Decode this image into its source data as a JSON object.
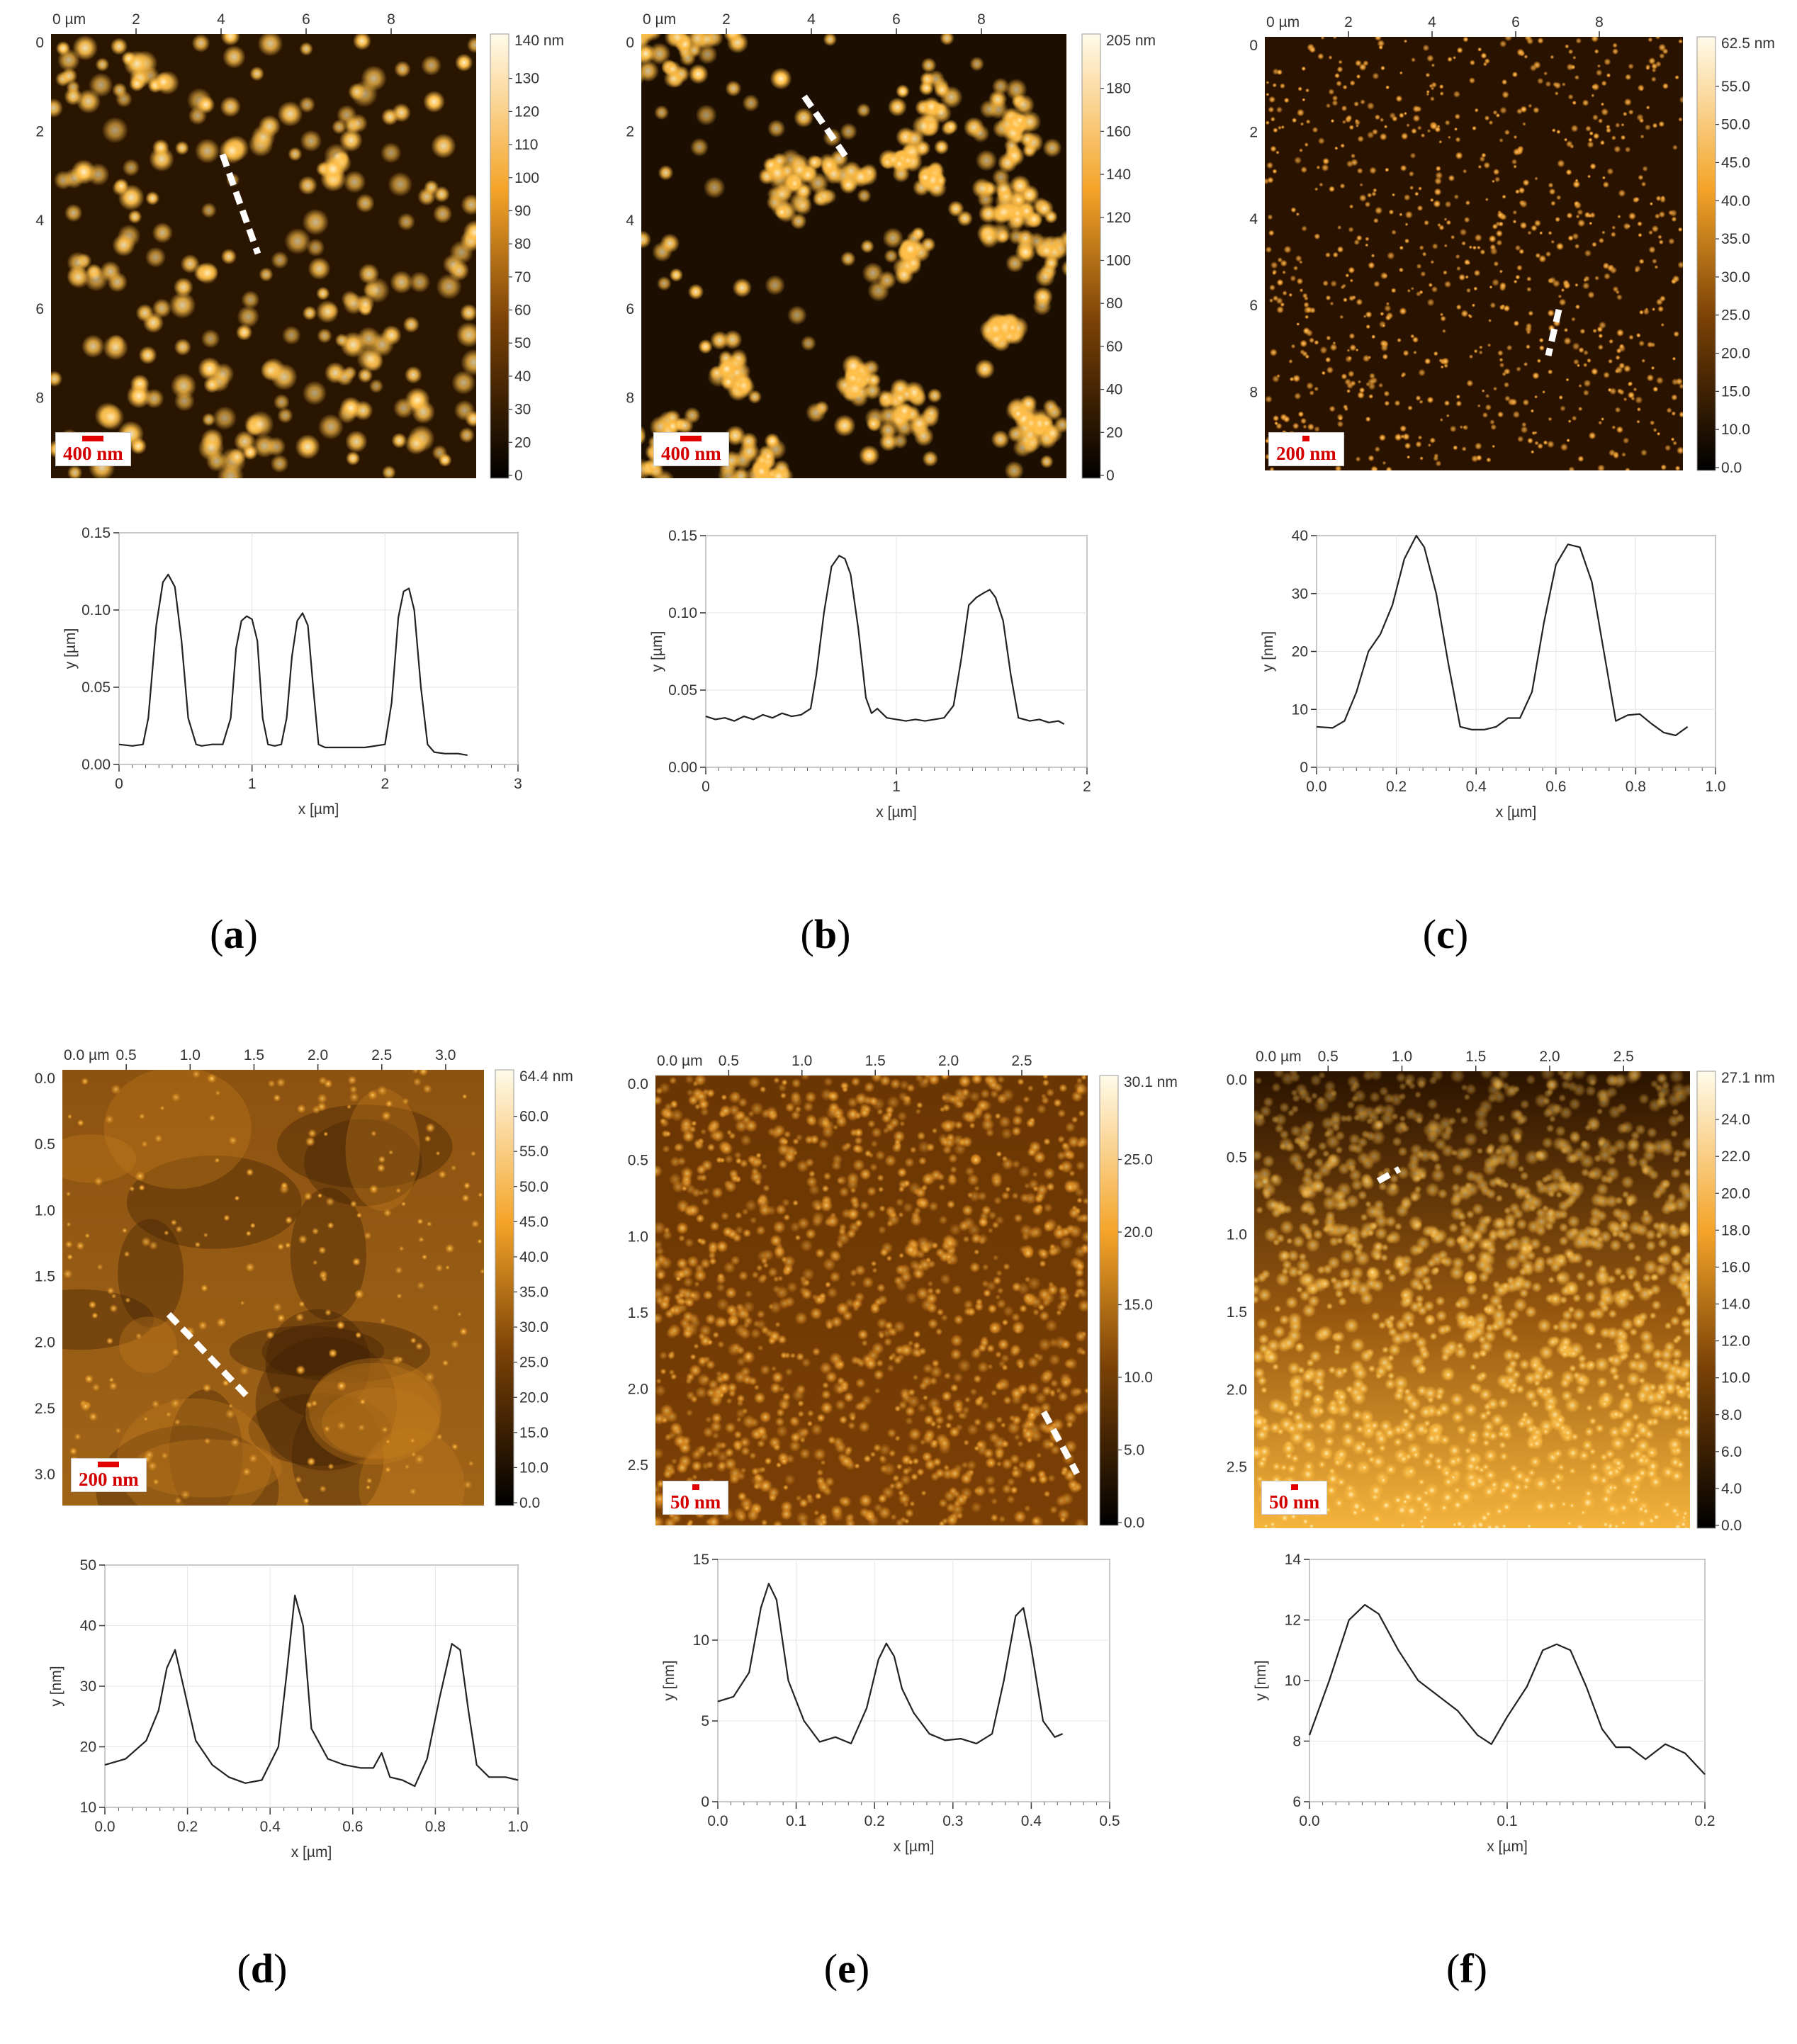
{
  "panels": [
    {
      "id": "a",
      "label": "a",
      "afm": {
        "x_axis_title": "0 µm",
        "x_ticks": [
          "2",
          "4",
          "6",
          "8"
        ],
        "y_ticks": [
          "0",
          "2",
          "4",
          "6",
          "8"
        ],
        "colorbar_max_label": "140 nm",
        "colorbar_ticks": [
          "130",
          "120",
          "110",
          "100",
          "90",
          "80",
          "70",
          "60",
          "50",
          "40",
          "30",
          "20",
          "0"
        ],
        "scale_bar_label": "400 nm",
        "colors": {
          "dark": "#2a1500",
          "mid": "#8a4f08",
          "bright": "#ffc04a",
          "highlight": "#fff1c8"
        }
      },
      "chart_data": {
        "type": "line",
        "xlabel": "x [µm]",
        "ylabel": "y [µm]",
        "xlim": [
          0,
          3
        ],
        "ylim": [
          0,
          0.15
        ],
        "x_ticks": [
          "0",
          "1",
          "2",
          "3"
        ],
        "y_ticks": [
          "0.00",
          "0.05",
          "0.10",
          "0.15"
        ],
        "x": [
          0,
          0.1,
          0.18,
          0.22,
          0.28,
          0.33,
          0.37,
          0.42,
          0.47,
          0.52,
          0.58,
          0.62,
          0.7,
          0.78,
          0.84,
          0.88,
          0.92,
          0.96,
          1.0,
          1.04,
          1.08,
          1.12,
          1.17,
          1.22,
          1.26,
          1.3,
          1.34,
          1.38,
          1.42,
          1.46,
          1.5,
          1.55,
          1.6,
          1.7,
          1.85,
          2.0,
          2.05,
          2.1,
          2.14,
          2.18,
          2.22,
          2.27,
          2.32,
          2.37,
          2.45,
          2.55,
          2.62
        ],
        "series": [
          {
            "values": [
              0.013,
              0.012,
              0.013,
              0.03,
              0.09,
              0.118,
              0.123,
              0.115,
              0.08,
              0.03,
              0.013,
              0.012,
              0.013,
              0.013,
              0.03,
              0.075,
              0.093,
              0.096,
              0.094,
              0.08,
              0.03,
              0.013,
              0.012,
              0.013,
              0.03,
              0.07,
              0.093,
              0.098,
              0.09,
              0.05,
              0.013,
              0.011,
              0.011,
              0.011,
              0.011,
              0.013,
              0.04,
              0.095,
              0.112,
              0.114,
              0.1,
              0.05,
              0.013,
              0.008,
              0.007,
              0.007,
              0.006
            ]
          }
        ]
      }
    },
    {
      "id": "b",
      "label": "b",
      "afm": {
        "x_axis_title": "0 µm",
        "x_ticks": [
          "2",
          "4",
          "6",
          "8"
        ],
        "y_ticks": [
          "0",
          "2",
          "4",
          "6",
          "8"
        ],
        "colorbar_max_label": "205 nm",
        "colorbar_ticks": [
          "180",
          "160",
          "140",
          "120",
          "100",
          "80",
          "60",
          "40",
          "20",
          "0"
        ],
        "scale_bar_label": "400 nm",
        "colors": {
          "dark": "#1c0e00",
          "mid": "#7a4406",
          "bright": "#ffbd45",
          "highlight": "#fff1c8"
        }
      },
      "chart_data": {
        "type": "line",
        "xlabel": "x [µm]",
        "ylabel": "y [µm]",
        "xlim": [
          0,
          2
        ],
        "ylim": [
          0,
          0.15
        ],
        "x_ticks": [
          "0",
          "1",
          "2"
        ],
        "y_ticks": [
          "0.00",
          "0.05",
          "0.10",
          "0.15"
        ],
        "x": [
          0,
          0.05,
          0.1,
          0.15,
          0.2,
          0.25,
          0.3,
          0.35,
          0.4,
          0.45,
          0.5,
          0.55,
          0.58,
          0.62,
          0.66,
          0.7,
          0.73,
          0.76,
          0.8,
          0.84,
          0.87,
          0.9,
          0.95,
          1.0,
          1.05,
          1.1,
          1.15,
          1.2,
          1.25,
          1.3,
          1.34,
          1.38,
          1.42,
          1.46,
          1.49,
          1.52,
          1.56,
          1.6,
          1.64,
          1.7,
          1.75,
          1.8,
          1.85,
          1.88
        ],
        "series": [
          {
            "values": [
              0.033,
              0.031,
              0.032,
              0.03,
              0.033,
              0.031,
              0.034,
              0.032,
              0.035,
              0.033,
              0.034,
              0.038,
              0.06,
              0.1,
              0.13,
              0.137,
              0.135,
              0.125,
              0.09,
              0.045,
              0.035,
              0.038,
              0.032,
              0.031,
              0.03,
              0.031,
              0.03,
              0.031,
              0.032,
              0.04,
              0.07,
              0.105,
              0.11,
              0.113,
              0.115,
              0.11,
              0.095,
              0.06,
              0.032,
              0.03,
              0.031,
              0.029,
              0.03,
              0.028
            ]
          }
        ]
      }
    },
    {
      "id": "c",
      "label": "c",
      "afm": {
        "x_axis_title": "0 µm",
        "x_ticks": [
          "2",
          "4",
          "6",
          "8"
        ],
        "y_ticks": [
          "0",
          "2",
          "4",
          "6",
          "8"
        ],
        "colorbar_max_label": "62.5 nm",
        "colorbar_ticks": [
          "55.0",
          "50.0",
          "45.0",
          "40.0",
          "35.0",
          "30.0",
          "25.0",
          "20.0",
          "15.0",
          "10.0",
          "0.0"
        ],
        "scale_bar_label": "200 nm",
        "colors": {
          "dark": "#2a1200",
          "mid": "#6b3403",
          "bright": "#e8962a",
          "highlight": "#ffd98a"
        }
      },
      "chart_data": {
        "type": "line",
        "xlabel": "x [µm]",
        "ylabel": "y [nm]",
        "xlim": [
          0,
          1.0
        ],
        "ylim": [
          0,
          40
        ],
        "x_ticks": [
          "0.0",
          "0.2",
          "0.4",
          "0.6",
          "0.8",
          "1.0"
        ],
        "y_ticks": [
          "0",
          "10",
          "20",
          "30",
          "40"
        ],
        "x": [
          0,
          0.04,
          0.07,
          0.1,
          0.13,
          0.16,
          0.19,
          0.22,
          0.25,
          0.27,
          0.3,
          0.33,
          0.36,
          0.39,
          0.42,
          0.45,
          0.48,
          0.51,
          0.54,
          0.57,
          0.6,
          0.63,
          0.66,
          0.69,
          0.72,
          0.75,
          0.78,
          0.81,
          0.84,
          0.87,
          0.9,
          0.93
        ],
        "series": [
          {
            "values": [
              7,
              6.8,
              8,
              13,
              20,
              23,
              28,
              36,
              40,
              38,
              30,
              18,
              7,
              6.5,
              6.5,
              7,
              8.5,
              8.5,
              13,
              25,
              35,
              38.5,
              38,
              32,
              20,
              8,
              9,
              9.2,
              7.5,
              6,
              5.5,
              7
            ]
          }
        ]
      }
    },
    {
      "id": "d",
      "label": "d",
      "afm": {
        "x_axis_title": "0.0 µm",
        "x_ticks": [
          "0.5",
          "1.0",
          "1.5",
          "2.0",
          "2.5",
          "3.0"
        ],
        "y_ticks": [
          "0.0",
          "0.5",
          "1.0",
          "1.5",
          "2.0",
          "2.5",
          "3.0"
        ],
        "colorbar_max_label": "64.4 nm",
        "colorbar_ticks": [
          "60.0",
          "55.0",
          "50.0",
          "45.0",
          "40.0",
          "35.0",
          "30.0",
          "25.0",
          "20.0",
          "15.0",
          "10.0",
          "0.0"
        ],
        "scale_bar_label": "200 nm",
        "colors": {
          "dark": "#3a1c02",
          "mid": "#8c5210",
          "bright": "#d88d22",
          "highlight": "#ffd270"
        }
      },
      "chart_data": {
        "type": "line",
        "xlabel": "x [µm]",
        "ylabel": "y [nm]",
        "xlim": [
          0,
          1.0
        ],
        "ylim": [
          10,
          50
        ],
        "x_ticks": [
          "0.0",
          "0.2",
          "0.4",
          "0.6",
          "0.8",
          "1.0"
        ],
        "y_ticks": [
          "10",
          "20",
          "30",
          "40",
          "50"
        ],
        "x": [
          0,
          0.05,
          0.1,
          0.13,
          0.15,
          0.17,
          0.19,
          0.22,
          0.26,
          0.3,
          0.34,
          0.38,
          0.42,
          0.44,
          0.46,
          0.48,
          0.5,
          0.54,
          0.58,
          0.62,
          0.65,
          0.67,
          0.69,
          0.72,
          0.75,
          0.78,
          0.81,
          0.84,
          0.86,
          0.88,
          0.9,
          0.93,
          0.97,
          1.0
        ],
        "series": [
          {
            "values": [
              17,
              18,
              21,
              26,
              33,
              36,
              30,
              21,
              17,
              15,
              14,
              14.5,
              20,
              32,
              45,
              40,
              23,
              18,
              17,
              16.5,
              16.5,
              19,
              15,
              14.5,
              13.5,
              18,
              28,
              37,
              36,
              26,
              17,
              15,
              15,
              14.5
            ]
          }
        ]
      }
    },
    {
      "id": "e",
      "label": "e",
      "afm": {
        "x_axis_title": "0.0 µm",
        "x_ticks": [
          "0.5",
          "1.0",
          "1.5",
          "2.0",
          "2.5"
        ],
        "y_ticks": [
          "0.0",
          "0.5",
          "1.0",
          "1.5",
          "2.0",
          "2.5"
        ],
        "colorbar_max_label": "30.1 nm",
        "colorbar_ticks": [
          "25.0",
          "20.0",
          "15.0",
          "10.0",
          "5.0",
          "0.0"
        ],
        "scale_bar_label": "50 nm",
        "colors": {
          "dark": "#2a1200",
          "mid": "#7a3f05",
          "bright": "#e08f22",
          "highlight": "#ffd77a"
        }
      },
      "chart_data": {
        "type": "line",
        "xlabel": "x [µm]",
        "ylabel": "y [nm]",
        "xlim": [
          0,
          0.5
        ],
        "ylim": [
          0,
          15
        ],
        "x_ticks": [
          "0.0",
          "0.1",
          "0.2",
          "0.3",
          "0.4",
          "0.5"
        ],
        "y_ticks": [
          "0",
          "5",
          "10",
          "15"
        ],
        "x": [
          0,
          0.02,
          0.04,
          0.055,
          0.065,
          0.075,
          0.09,
          0.11,
          0.13,
          0.15,
          0.17,
          0.19,
          0.205,
          0.215,
          0.225,
          0.235,
          0.25,
          0.27,
          0.29,
          0.31,
          0.33,
          0.35,
          0.365,
          0.38,
          0.39,
          0.4,
          0.415,
          0.43,
          0.44
        ],
        "series": [
          {
            "values": [
              6.2,
              6.5,
              8,
              12,
              13.5,
              12.5,
              7.5,
              5,
              3.7,
              4,
              3.6,
              5.8,
              8.8,
              9.8,
              9,
              7,
              5.5,
              4.2,
              3.8,
              3.9,
              3.6,
              4.2,
              7.5,
              11.5,
              12,
              9.5,
              5,
              4,
              4.2
            ]
          }
        ]
      }
    },
    {
      "id": "f",
      "label": "f",
      "afm": {
        "x_axis_title": "0.0 µm",
        "x_ticks": [
          "0.5",
          "1.0",
          "1.5",
          "2.0",
          "2.5"
        ],
        "y_ticks": [
          "0.0",
          "0.5",
          "1.0",
          "1.5",
          "2.0",
          "2.5"
        ],
        "colorbar_max_label": "27.1 nm",
        "colorbar_ticks": [
          "24.0",
          "22.0",
          "20.0",
          "18.0",
          "16.0",
          "14.0",
          "12.0",
          "10.0",
          "8.0",
          "6.0",
          "4.0",
          "0.0"
        ],
        "scale_bar_label": "50 nm",
        "colors": {
          "dark": "#2a1300",
          "mid": "#9a5a10",
          "bright": "#f5b43c",
          "highlight": "#fff0b8"
        }
      },
      "chart_data": {
        "type": "line",
        "xlabel": "x [µm]",
        "ylabel": "y [nm]",
        "xlim": [
          0,
          0.2
        ],
        "ylim": [
          6,
          14
        ],
        "x_ticks": [
          "0.0",
          "0.1",
          "0.2"
        ],
        "y_ticks": [
          "6",
          "8",
          "10",
          "12",
          "14"
        ],
        "x": [
          0,
          0.01,
          0.02,
          0.028,
          0.035,
          0.045,
          0.055,
          0.065,
          0.075,
          0.085,
          0.092,
          0.1,
          0.11,
          0.118,
          0.125,
          0.132,
          0.14,
          0.148,
          0.155,
          0.162,
          0.17,
          0.18,
          0.19,
          0.2
        ],
        "series": [
          {
            "values": [
              8.2,
              10,
              12,
              12.5,
              12.2,
              11,
              10,
              9.5,
              9,
              8.2,
              7.9,
              8.8,
              9.8,
              11,
              11.2,
              11,
              9.8,
              8.4,
              7.8,
              7.8,
              7.4,
              7.9,
              7.6,
              6.9
            ]
          }
        ]
      }
    }
  ]
}
